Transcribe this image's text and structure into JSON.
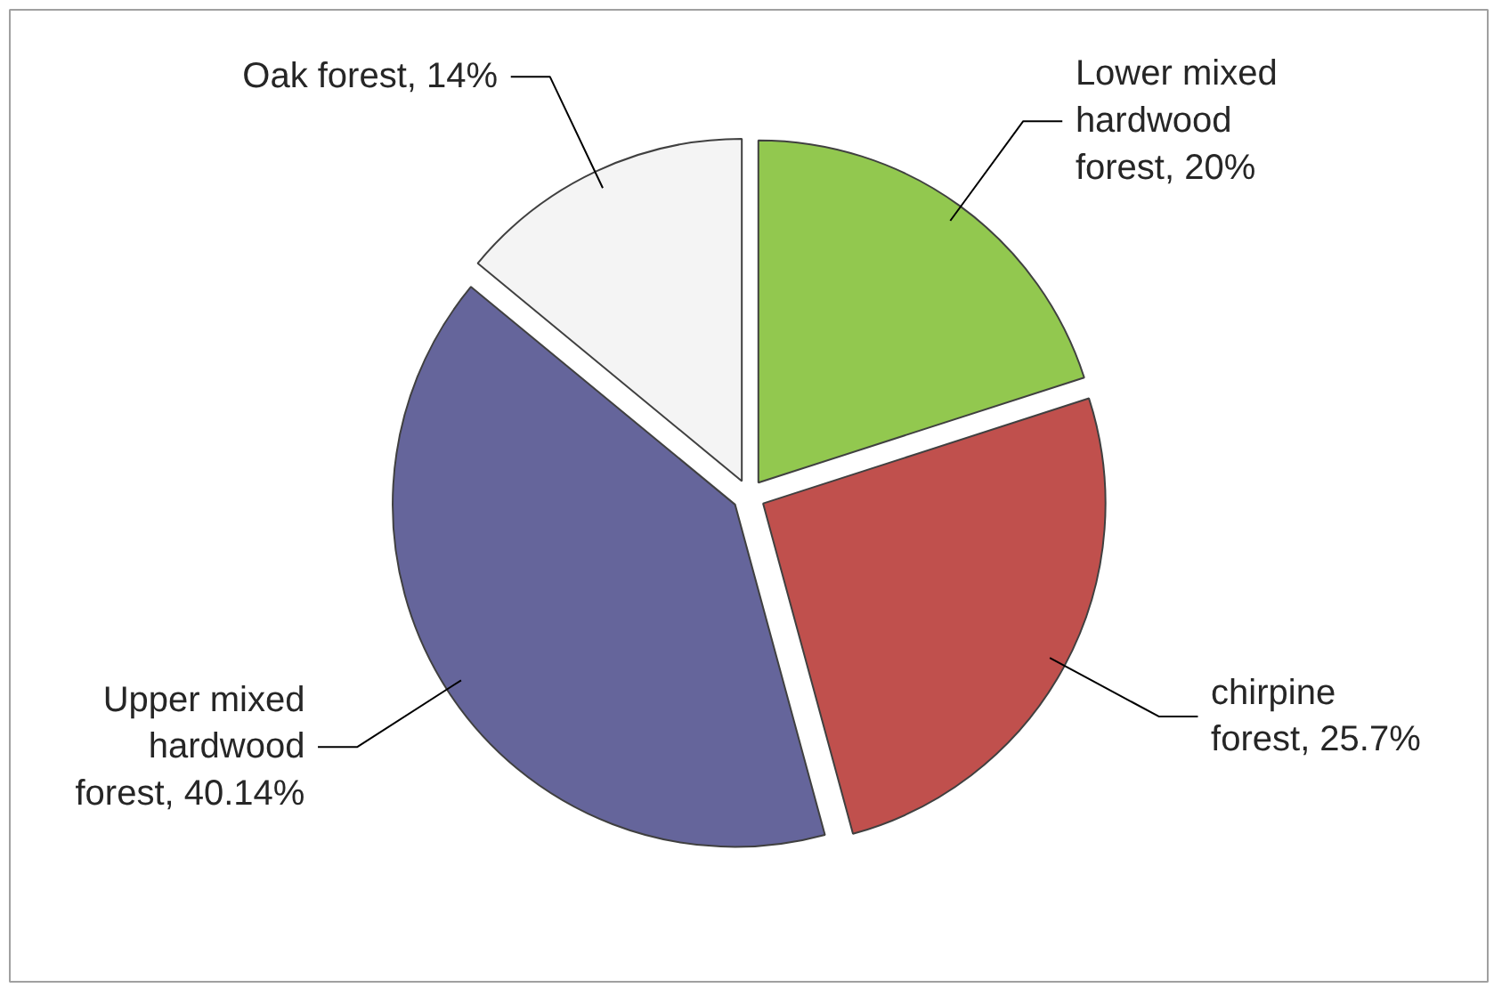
{
  "chart_data": {
    "type": "pie",
    "categories": [
      "Lower mixed hardwood forest",
      "chirpine forest",
      "Upper mixed hardwood forest",
      "Oak forest"
    ],
    "values": [
      20,
      25.7,
      40.14,
      14
    ],
    "colors": [
      "#92c84f",
      "#c0504d",
      "#65659b",
      "#f4f4f4"
    ],
    "value_labels": [
      "20%",
      "25.7%",
      "40.14%",
      "14%"
    ]
  }
}
